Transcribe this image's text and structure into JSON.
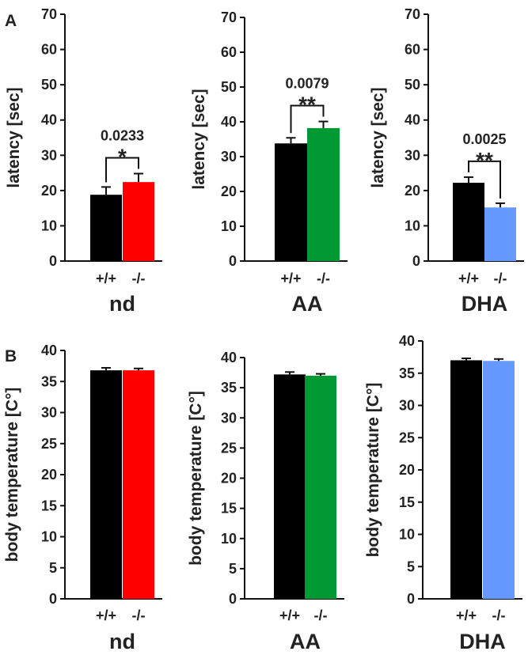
{
  "panel_labels": [
    "A",
    "B"
  ],
  "chart_data": [
    {
      "type": "bar",
      "panel": "A",
      "title": "",
      "xlabel": "nd",
      "ylabel": "latency [sec]",
      "categories": [
        "+/+",
        "-/-"
      ],
      "values": [
        18.8,
        22.4
      ],
      "errors": [
        2.2,
        2.4
      ],
      "colors": [
        "#000000",
        "#ff0000"
      ],
      "ylim": [
        0,
        70
      ],
      "yticks": [
        0,
        10,
        20,
        30,
        40,
        50,
        60,
        70
      ],
      "pvalue": "0.0233",
      "significance": "*"
    },
    {
      "type": "bar",
      "panel": "A",
      "title": "",
      "xlabel": "AA",
      "ylabel": "latency [sec]",
      "categories": [
        "+/+",
        "-/-"
      ],
      "values": [
        33.8,
        38.2
      ],
      "errors": [
        1.6,
        1.9
      ],
      "colors": [
        "#000000",
        "#009933"
      ],
      "ylim": [
        0,
        70
      ],
      "yticks": [
        0,
        10,
        20,
        30,
        40,
        50,
        60,
        70
      ],
      "pvalue": "0.0079",
      "significance": "**"
    },
    {
      "type": "bar",
      "panel": "A",
      "title": "",
      "xlabel": "DHA",
      "ylabel": "latency [sec]",
      "categories": [
        "+/+",
        "-/-"
      ],
      "values": [
        22.2,
        15.2
      ],
      "errors": [
        1.6,
        1.2
      ],
      "colors": [
        "#000000",
        "#6699ff"
      ],
      "ylim": [
        0,
        70
      ],
      "yticks": [
        0,
        10,
        20,
        30,
        40,
        50,
        60,
        70
      ],
      "pvalue": "0.0025",
      "significance": "**"
    },
    {
      "type": "bar",
      "panel": "B",
      "title": "",
      "xlabel": "nd",
      "ylabel": "body temperature [C°]",
      "categories": [
        "+/+",
        "-/-"
      ],
      "values": [
        36.8,
        36.8
      ],
      "errors": [
        0.4,
        0.3
      ],
      "colors": [
        "#000000",
        "#ff0000"
      ],
      "ylim": [
        0,
        40
      ],
      "yticks": [
        0,
        5,
        10,
        15,
        20,
        25,
        30,
        35,
        40
      ]
    },
    {
      "type": "bar",
      "panel": "B",
      "title": "",
      "xlabel": "AA",
      "ylabel": "body temperature [C°]",
      "categories": [
        "+/+",
        "-/-"
      ],
      "values": [
        37.2,
        37.0
      ],
      "errors": [
        0.4,
        0.3
      ],
      "colors": [
        "#000000",
        "#009933"
      ],
      "ylim": [
        0,
        40
      ],
      "yticks": [
        0,
        5,
        10,
        15,
        20,
        25,
        30,
        35,
        40
      ]
    },
    {
      "type": "bar",
      "panel": "B",
      "title": "",
      "xlabel": "DHA",
      "ylabel": "body temperature [C°]",
      "categories": [
        "+/+",
        "-/-"
      ],
      "values": [
        37.0,
        36.9
      ],
      "errors": [
        0.3,
        0.3
      ],
      "colors": [
        "#000000",
        "#6699ff"
      ],
      "ylim": [
        0,
        40
      ],
      "yticks": [
        0,
        5,
        10,
        15,
        20,
        25,
        30,
        35,
        40
      ]
    }
  ]
}
